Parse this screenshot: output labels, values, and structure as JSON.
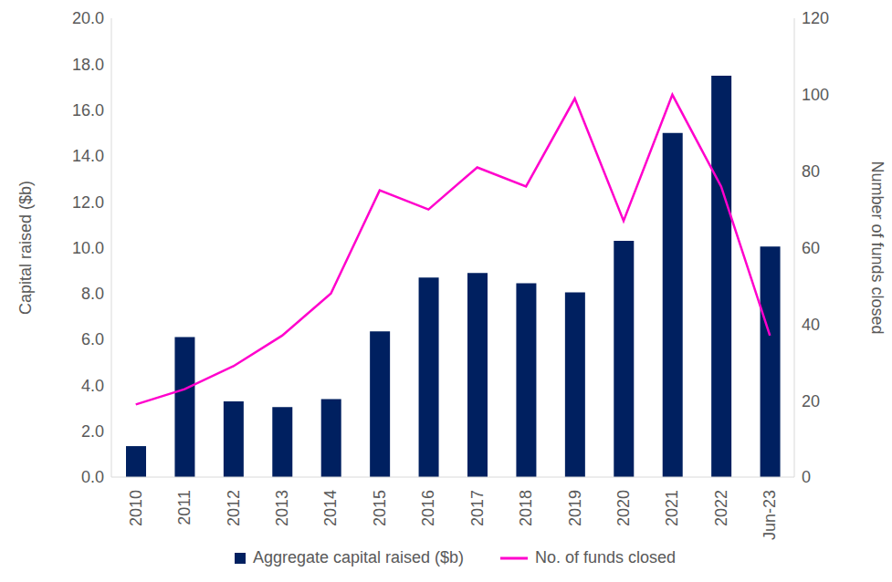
{
  "chart_data": {
    "type": "bar",
    "categories": [
      "2010",
      "2011",
      "2012",
      "2013",
      "2014",
      "2015",
      "2016",
      "2017",
      "2018",
      "2019",
      "2020",
      "2021",
      "2022",
      "Jun-23"
    ],
    "series": [
      {
        "name": "Aggregate capital raised ($b)",
        "type": "bar",
        "color": "#002060",
        "values": [
          1.35,
          6.1,
          3.3,
          3.05,
          3.4,
          6.35,
          8.7,
          8.9,
          8.45,
          8.05,
          10.3,
          15.0,
          17.5,
          10.05
        ]
      },
      {
        "name": "No. of funds closed",
        "type": "line",
        "color": "#ff00cc",
        "axis": "y2",
        "values": [
          19,
          23,
          29,
          37,
          48,
          75,
          70,
          81,
          76,
          99,
          67,
          100,
          76,
          37
        ]
      }
    ],
    "ylabel": "Capital raised ($b)",
    "y2label": "Number of funds closed",
    "ylim": [
      0,
      20
    ],
    "yticks": [
      {
        "value": 0,
        "label": "0.0"
      },
      {
        "value": 2,
        "label": "2.0"
      },
      {
        "value": 4,
        "label": "4.0"
      },
      {
        "value": 6,
        "label": "6.0"
      },
      {
        "value": 8,
        "label": "8.0"
      },
      {
        "value": 10,
        "label": "10.0"
      },
      {
        "value": 12,
        "label": "12.0"
      },
      {
        "value": 14,
        "label": "14.0"
      },
      {
        "value": 16,
        "label": "16.0"
      },
      {
        "value": 18,
        "label": "18.0"
      },
      {
        "value": 20,
        "label": "20.0"
      }
    ],
    "y2lim": [
      0,
      120
    ],
    "y2ticks": [
      0,
      20,
      40,
      60,
      80,
      100,
      120
    ],
    "grid": false,
    "legend": "bottom"
  }
}
